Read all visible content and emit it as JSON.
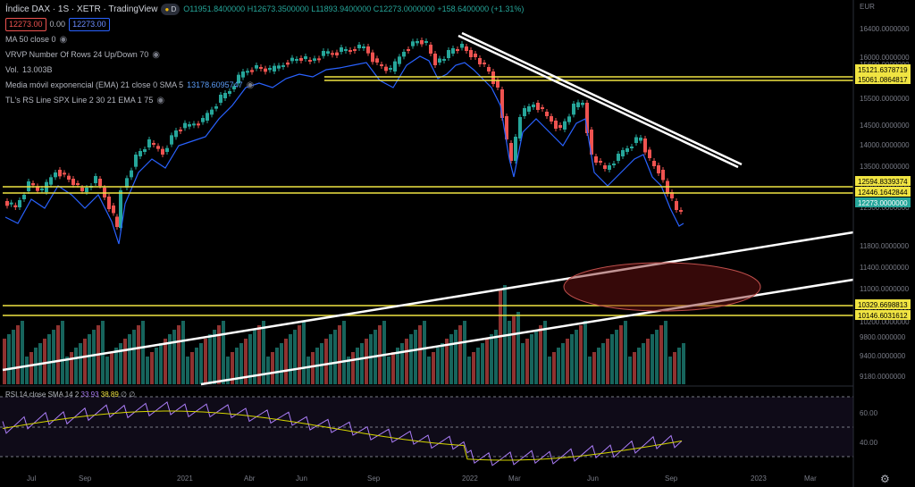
{
  "header": {
    "title": "Índice DAX · 1S · XETR · TradingView",
    "ohlc": {
      "open": "O11951.8400000",
      "high": "H12673.3500000",
      "low": "L11893.9400000",
      "close": "C12273.0000000",
      "change": "+158.6400000 (+1.31%)"
    },
    "bid": "12273.00",
    "spread": "0.00",
    "ask": "12273.00"
  },
  "indicators": {
    "ma": "MA 50 close 0",
    "vrvp": "VRVP Number Of Rows 24 Up/Down 70",
    "vol_label": "Vol.",
    "vol_value": "13.003B",
    "ema_label": "Media móvil exponencial (EMA) 21 close 0 SMA 5",
    "ema_value": "13178.6095747",
    "tl": "TL's RS Line SPX Line 2 30 21 EMA 1 75"
  },
  "rsi": {
    "label": "RSI 14 close SMA 14 2",
    "rsi_value": "33.93",
    "ma_value": "38.89",
    "extra": "∅ ∅"
  },
  "price_axis": {
    "currency": "EUR",
    "ticks": [
      "16400.0000000",
      "16000.0000000",
      "15600.0000000",
      "15500.0000000",
      "14500.0000000",
      "14000.0000000",
      "13500.0000000",
      "13000.0000000",
      "12500.0000000",
      "11800.0000000",
      "11400.0000000",
      "11000.0000000",
      "10600.0000000",
      "10200.0000000",
      "9800.0000000",
      "9400.0000000",
      "9180.0000000"
    ],
    "levels": [
      {
        "label": "15121.6378719",
        "color": "#f0e442"
      },
      {
        "label": "15061.0864817",
        "color": "#f0e442"
      },
      {
        "label": "12594.8339374",
        "color": "#f0e442"
      },
      {
        "label": "12446.1642844",
        "color": "#f0e442"
      },
      {
        "label": "12273.0000000",
        "color": "#26a69a"
      },
      {
        "label": "10329.6698813",
        "color": "#f0e442"
      },
      {
        "label": "10146.6031612",
        "color": "#f0e442"
      }
    ]
  },
  "rsi_axis": {
    "ticks": [
      "60.00",
      "40.00"
    ]
  },
  "time_axis": {
    "ticks": [
      "Jul",
      "Sep",
      "2021",
      "Abr",
      "Jun",
      "Sep",
      "2022",
      "Mar",
      "Jun",
      "Sep",
      "2023",
      "Mar"
    ]
  },
  "colors": {
    "up": "#26a69a",
    "down": "#ef5350",
    "level": "#f0e442",
    "trend": "#ffffff",
    "ema": "#2962ff",
    "rsi": "#ab7df8",
    "rsi_ma": "#d4d400"
  },
  "icons": [
    "eye-icon",
    "gear-icon"
  ]
}
